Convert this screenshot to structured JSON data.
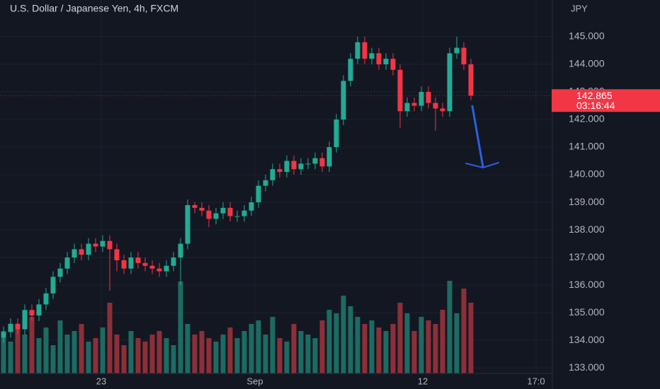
{
  "chart_data": {
    "type": "candlestick",
    "title": "U.S. Dollar / Japanese Yen, 4h, FXCM",
    "currency": "JPY",
    "last_price": 142.865,
    "countdown": "03:16:44",
    "up_color": "#22ab94",
    "down_color": "#f23645",
    "volume_up_color": "#1d6b63",
    "volume_down_color": "#8d2f38",
    "grid": true,
    "xlim": [
      -0.5,
      77.5
    ],
    "xticks": [
      {
        "value": 13.8,
        "label": "23"
      },
      {
        "value": 35.5,
        "label": "Sep"
      },
      {
        "value": 59.2,
        "label": "12"
      },
      {
        "value": 75.2,
        "label": "17:0"
      }
    ],
    "ylim": [
      132.8,
      146.33
    ],
    "yticks": [
      {
        "value": 133,
        "label": "133.000"
      },
      {
        "value": 134,
        "label": "134.000"
      },
      {
        "value": 135,
        "label": "135.000"
      },
      {
        "value": 136,
        "label": "136.000"
      },
      {
        "value": 137,
        "label": "137.000"
      },
      {
        "value": 138,
        "label": "138.000"
      },
      {
        "value": 139,
        "label": "139.000"
      },
      {
        "value": 140,
        "label": "140.000"
      },
      {
        "value": 141,
        "label": "141.000"
      },
      {
        "value": 142,
        "label": "142.000"
      },
      {
        "value": 143,
        "label": "143.000"
      },
      {
        "value": 144,
        "label": "144.000"
      },
      {
        "value": 145,
        "label": "145.000"
      }
    ],
    "open": [
      134.1,
      134.3,
      134.6,
      134.4,
      135.1,
      134.9,
      135.3,
      135.7,
      136.3,
      136.6,
      137.0,
      137.3,
      137.1,
      137.5,
      137.4,
      137.6,
      137.3,
      136.9,
      136.6,
      137.0,
      136.8,
      136.7,
      136.6,
      136.5,
      136.7,
      137.0,
      137.5,
      138.9,
      138.8,
      138.7,
      138.4,
      138.6,
      138.8,
      138.5,
      138.5,
      138.7,
      139.0,
      139.6,
      139.8,
      140.2,
      140.1,
      140.5,
      140.2,
      140.4,
      140.4,
      140.6,
      140.3,
      141.0,
      142.0,
      143.4,
      144.2,
      144.8,
      144.2,
      144.4,
      144.0,
      144.2,
      143.8,
      142.3,
      142.6,
      142.5,
      143.0,
      142.6,
      142.4,
      142.3,
      144.4,
      144.6,
      144.0
    ],
    "high": [
      134.5,
      134.8,
      134.8,
      135.3,
      135.3,
      135.5,
      135.9,
      136.5,
      136.8,
      137.2,
      137.5,
      137.5,
      137.7,
      137.7,
      137.8,
      137.8,
      137.5,
      137.1,
      137.2,
      137.2,
      137.0,
      136.9,
      136.8,
      136.9,
      137.2,
      137.7,
      139.1,
      139.0,
      139.0,
      138.9,
      138.8,
      139.0,
      139.0,
      138.7,
      138.9,
      139.2,
      139.8,
      140.0,
      140.4,
      140.4,
      140.7,
      140.7,
      140.6,
      140.6,
      140.8,
      140.8,
      141.2,
      142.2,
      143.6,
      144.4,
      145.0,
      145.0,
      144.6,
      144.6,
      144.4,
      144.4,
      144.0,
      142.8,
      142.8,
      143.2,
      143.2,
      142.8,
      142.6,
      144.6,
      145.0,
      144.8,
      144.2
    ],
    "low": [
      133.9,
      134.1,
      134.2,
      134.2,
      134.7,
      134.7,
      135.1,
      135.5,
      136.1,
      136.4,
      136.8,
      136.9,
      136.9,
      137.2,
      137.2,
      135.8,
      136.5,
      136.4,
      136.4,
      136.6,
      136.5,
      136.4,
      136.3,
      136.3,
      136.5,
      136.0,
      137.3,
      138.6,
      138.5,
      138.1,
      138.2,
      138.4,
      138.3,
      138.3,
      138.3,
      138.5,
      138.8,
      139.4,
      139.6,
      139.9,
      139.9,
      140.0,
      140.0,
      140.2,
      140.2,
      140.1,
      140.1,
      140.8,
      141.8,
      143.2,
      144.0,
      144.0,
      144.0,
      143.8,
      143.8,
      143.6,
      141.7,
      142.1,
      142.3,
      142.3,
      142.4,
      141.6,
      142.1,
      142.1,
      144.2,
      143.8,
      142.7
    ],
    "close": [
      134.3,
      134.6,
      134.4,
      135.1,
      134.9,
      135.3,
      135.7,
      136.3,
      136.6,
      137.0,
      137.3,
      137.1,
      137.5,
      137.4,
      137.6,
      137.3,
      136.9,
      136.6,
      137.0,
      136.8,
      136.7,
      136.6,
      136.5,
      136.7,
      137.0,
      137.5,
      138.9,
      138.8,
      138.7,
      138.4,
      138.6,
      138.8,
      138.5,
      138.5,
      138.7,
      139.0,
      139.6,
      139.8,
      140.2,
      140.1,
      140.5,
      140.2,
      140.4,
      140.4,
      140.6,
      140.3,
      141.0,
      142.0,
      143.4,
      144.2,
      144.8,
      144.2,
      144.4,
      144.0,
      144.2,
      143.8,
      142.3,
      142.6,
      142.5,
      143.0,
      142.6,
      142.4,
      142.3,
      144.4,
      144.6,
      144.0,
      142.865
    ],
    "volumes": [
      60,
      45,
      70,
      55,
      80,
      50,
      65,
      40,
      75,
      55,
      60,
      70,
      45,
      50,
      65,
      100,
      55,
      40,
      60,
      50,
      45,
      55,
      60,
      50,
      40,
      130,
      70,
      55,
      60,
      50,
      45,
      55,
      65,
      50,
      60,
      70,
      75,
      55,
      80,
      50,
      45,
      70,
      60,
      55,
      50,
      75,
      90,
      85,
      110,
      95,
      80,
      70,
      75,
      65,
      60,
      70,
      100,
      85,
      60,
      80,
      75,
      70,
      90,
      131,
      85,
      120,
      100
    ]
  }
}
